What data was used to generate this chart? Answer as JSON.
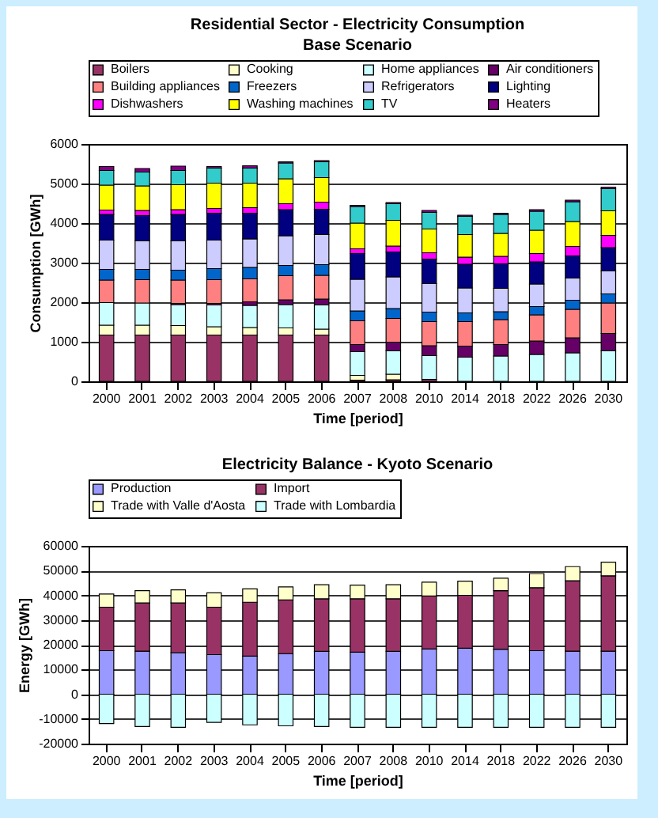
{
  "chart_data": [
    {
      "type": "bar",
      "title": "Residential Sector - Electricity Consumption",
      "subtitle": "Base Scenario",
      "xlabel": "Time [period]",
      "ylabel": "Consumption [GWh]",
      "categories": [
        "2000",
        "2001",
        "2002",
        "2003",
        "2004",
        "2005",
        "2006",
        "2007",
        "2008",
        "2010",
        "2014",
        "2018",
        "2022",
        "2026",
        "2030"
      ],
      "stacked": true,
      "ylim": [
        0,
        6000
      ],
      "yticks": [
        0,
        1000,
        2000,
        3000,
        4000,
        5000,
        6000
      ],
      "grid": "y",
      "legend": "top",
      "series": [
        {
          "name": "Boilers",
          "color": "#993366",
          "values": [
            1170,
            1170,
            1170,
            1170,
            1170,
            1170,
            1170,
            30,
            40,
            50,
            0,
            0,
            0,
            0,
            0
          ]
        },
        {
          "name": "Cooking",
          "color": "#ffffcc",
          "values": [
            250,
            250,
            240,
            210,
            190,
            180,
            150,
            120,
            140,
            null,
            0,
            0,
            0,
            0,
            0
          ]
        },
        {
          "name": "Home appliances",
          "color": "#ccffff",
          "values": [
            570,
            560,
            530,
            550,
            560,
            590,
            610,
            600,
            590,
            600,
            610,
            640,
            680,
            720,
            770
          ]
        },
        {
          "name": "Air conditioners",
          "color": "#660066",
          "values": [
            null,
            null,
            30,
            40,
            90,
            120,
            150,
            180,
            220,
            250,
            280,
            290,
            340,
            380,
            440
          ]
        },
        {
          "name": "Building appliances",
          "color": "#ff8080",
          "values": [
            570,
            590,
            590,
            600,
            580,
            610,
            600,
            600,
            600,
            610,
            620,
            630,
            660,
            720,
            770
          ]
        },
        {
          "name": "Freezers",
          "color": "#0066cc",
          "values": [
            270,
            260,
            250,
            280,
            290,
            260,
            270,
            250,
            250,
            240,
            220,
            200,
            210,
            230,
            230
          ]
        },
        {
          "name": "Refrigerators",
          "color": "#ccccff",
          "values": [
            740,
            720,
            740,
            720,
            720,
            750,
            760,
            800,
            800,
            720,
            630,
            590,
            570,
            560,
            580
          ]
        },
        {
          "name": "Lighting",
          "color": "#000080",
          "values": [
            650,
            640,
            670,
            680,
            650,
            660,
            640,
            650,
            630,
            620,
            600,
            620,
            560,
            560,
            590
          ]
        },
        {
          "name": "Dishwashers",
          "color": "#ff00ff",
          "values": [
            110,
            130,
            120,
            120,
            140,
            150,
            180,
            120,
            150,
            160,
            180,
            190,
            210,
            240,
            310
          ]
        },
        {
          "name": "Washing machines",
          "color": "#ffff00",
          "values": [
            630,
            620,
            630,
            640,
            620,
            630,
            620,
            650,
            650,
            600,
            570,
            580,
            590,
            630,
            620
          ]
        },
        {
          "name": "TV",
          "color": "#33cccc",
          "values": [
            370,
            350,
            360,
            380,
            380,
            400,
            400,
            420,
            420,
            420,
            460,
            480,
            480,
            500,
            560
          ]
        },
        {
          "name": "Heaters",
          "color": "#800080",
          "values": [
            100,
            90,
            110,
            40,
            60,
            30,
            30,
            30,
            30,
            50,
            30,
            30,
            40,
            40,
            40
          ]
        }
      ]
    },
    {
      "type": "bar",
      "title": "Electricity Balance - Kyoto Scenario",
      "xlabel": "Time [period]",
      "ylabel": "Energy [GWh]",
      "categories": [
        "2000",
        "2001",
        "2002",
        "2003",
        "2004",
        "2005",
        "2006",
        "2007",
        "2008",
        "2010",
        "2014",
        "2018",
        "2022",
        "2026",
        "2030"
      ],
      "stacked": true,
      "ylim": [
        -20000,
        60000
      ],
      "yticks": [
        -20000,
        -10000,
        0,
        10000,
        20000,
        30000,
        40000,
        50000,
        60000
      ],
      "grid": "y",
      "legend": "top",
      "series": [
        {
          "name": "Production",
          "color": "#9999ff",
          "values": [
            17600,
            17400,
            16800,
            16000,
            15400,
            16400,
            17300,
            17000,
            17300,
            18300,
            18600,
            18200,
            17600,
            17400,
            17400
          ]
        },
        {
          "name": "Import",
          "color": "#993366",
          "values": [
            17600,
            19500,
            20100,
            19200,
            21800,
            21700,
            21300,
            21600,
            21300,
            21400,
            21400,
            23700,
            25500,
            28500,
            30500
          ]
        },
        {
          "name": "Trade with Valle d'Aosta",
          "color": "#ffffcc",
          "values": [
            5300,
            5000,
            5300,
            5800,
            5400,
            5300,
            5700,
            5500,
            5700,
            5600,
            5700,
            5000,
            5700,
            5700,
            5500
          ]
        },
        {
          "name": "Trade with Lombardia",
          "color": "#ccffff",
          "values": [
            -11900,
            -13100,
            -13400,
            -11400,
            -12400,
            -12800,
            -13100,
            -13400,
            -13400,
            -13400,
            -13400,
            -13400,
            -13400,
            -13400,
            -13400
          ]
        }
      ]
    }
  ]
}
